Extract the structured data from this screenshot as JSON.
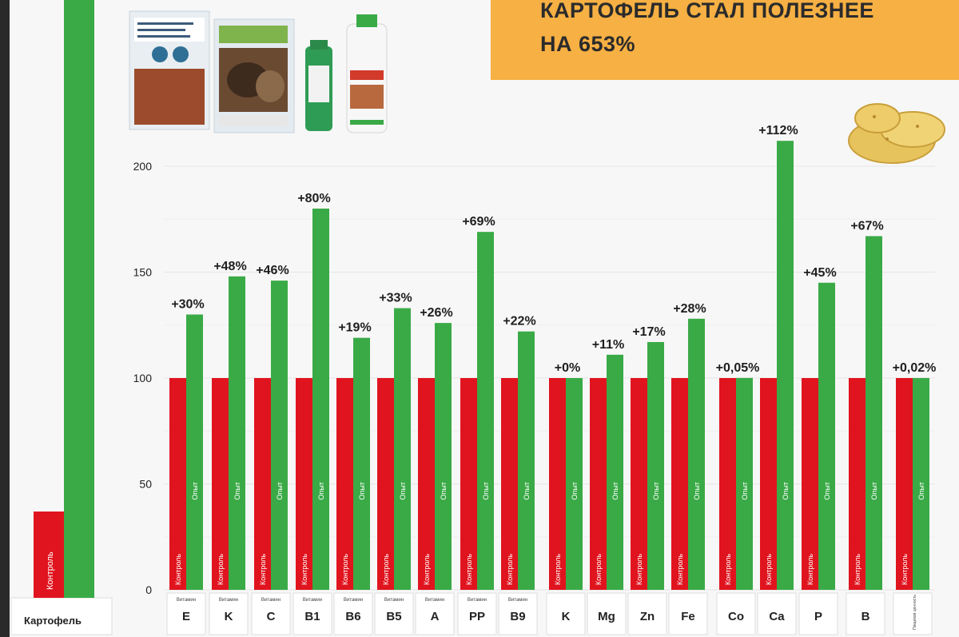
{
  "banner": {
    "line1": "КАРТОФЕЛЬ СТАЛ ПОЛЕЗНЕЕ",
    "line2": "НА 653%"
  },
  "colors": {
    "control": "#e0141e",
    "experiment": "#3aaa47",
    "banner": "#f6b043"
  },
  "images": {
    "products": "product-packages-photo",
    "potato": "potato-icon"
  },
  "chart_data": [
    {
      "type": "bar",
      "categories": [
        "Картофель"
      ],
      "series": [
        {
          "name": "Контроль",
          "values": [
            40
          ]
        },
        {
          "name": "",
          "values": [
            null
          ]
        }
      ],
      "note_values": "experiment bar extends beyond the visible area"
    },
    {
      "type": "bar",
      "categories": [
        "E",
        "K",
        "C",
        "B1",
        "B6",
        "B5",
        "A",
        "PP",
        "B9",
        "K",
        "Mg",
        "Zn",
        "Fe",
        "Co",
        "Ca",
        "P",
        "B",
        ""
      ],
      "group_labels": [
        "Витамин",
        "Витамин",
        "Витамин",
        "Витамин",
        "Витамин",
        "Витамин",
        "Витамин",
        "Витамин",
        "Витамин",
        "",
        "",
        "",
        "",
        "",
        "",
        "",
        "",
        "Пищевая ценность"
      ],
      "series": [
        {
          "name": "Контроль",
          "values": [
            100,
            100,
            100,
            100,
            100,
            100,
            100,
            100,
            100,
            100,
            100,
            100,
            100,
            100,
            100,
            100,
            100,
            100
          ]
        },
        {
          "name": "Опыт",
          "values": [
            130,
            148,
            146,
            180,
            119,
            133,
            126,
            169,
            122,
            100,
            111,
            117,
            128,
            100.05,
            212,
            145,
            167,
            100.02
          ]
        }
      ],
      "data_labels": [
        "+30%",
        "+48%",
        "+46%",
        "+80%",
        "+19%",
        "+33%",
        "+26%",
        "+69%",
        "+22%",
        "+0%",
        "+11%",
        "+17%",
        "+28%",
        "+0,05%",
        "+112%",
        "+45%",
        "+67%",
        "+0,02%"
      ],
      "yticks": [
        "0",
        "50",
        "100",
        "150",
        "200"
      ],
      "ylim": [
        0,
        200
      ],
      "grid": true,
      "xlabel": "",
      "ylabel": ""
    }
  ]
}
